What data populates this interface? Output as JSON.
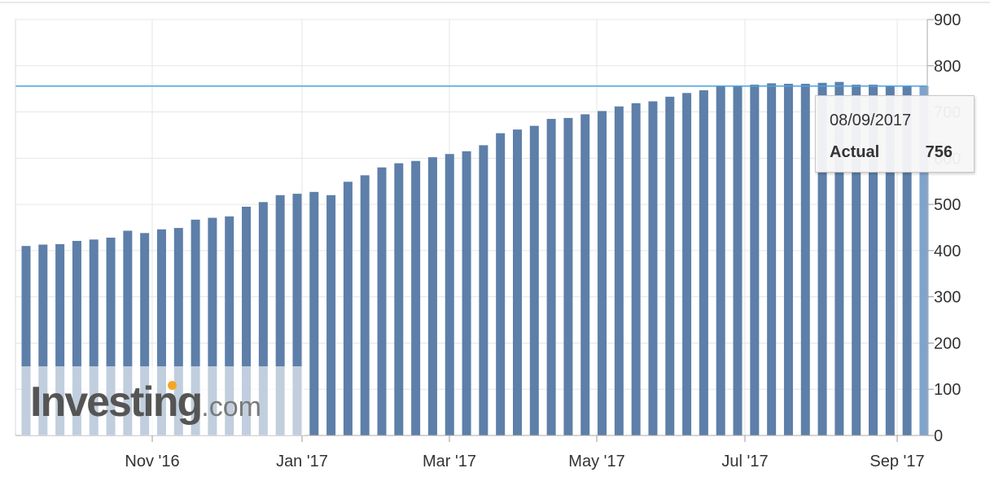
{
  "chart_data": {
    "type": "bar",
    "title": "",
    "xlabel": "",
    "ylabel": "",
    "ylim": [
      0,
      900
    ],
    "y_ticks": [
      "0",
      "100",
      "200",
      "300",
      "400",
      "500",
      "600",
      "700",
      "800",
      "900"
    ],
    "x_ticks": [
      "Nov '16",
      "Jan '17",
      "Mar '17",
      "May '17",
      "Jul '17",
      "Sep '17"
    ],
    "grid": true,
    "reference_line": 756,
    "highlighted_index": 53,
    "values": [
      410,
      413,
      414,
      421,
      424,
      428,
      443,
      438,
      446,
      449,
      467,
      471,
      474,
      495,
      505,
      520,
      523,
      527,
      520,
      549,
      563,
      580,
      589,
      594,
      602,
      609,
      615,
      628,
      654,
      662,
      670,
      685,
      687,
      695,
      702,
      712,
      719,
      723,
      733,
      741,
      747,
      757,
      756,
      759,
      762,
      761,
      761,
      763,
      765,
      759,
      759,
      756,
      756,
      756
    ]
  },
  "tooltip": {
    "date": "08/09/2017",
    "label": "Actual",
    "value": "756"
  },
  "watermark": {
    "brand": "Investing",
    "suffix": ".com"
  },
  "colors": {
    "bar": "#5d7fa9",
    "highlight": "#7ea3ce",
    "reference_line": "#4aa3df",
    "grid": "#e6e6e6"
  }
}
